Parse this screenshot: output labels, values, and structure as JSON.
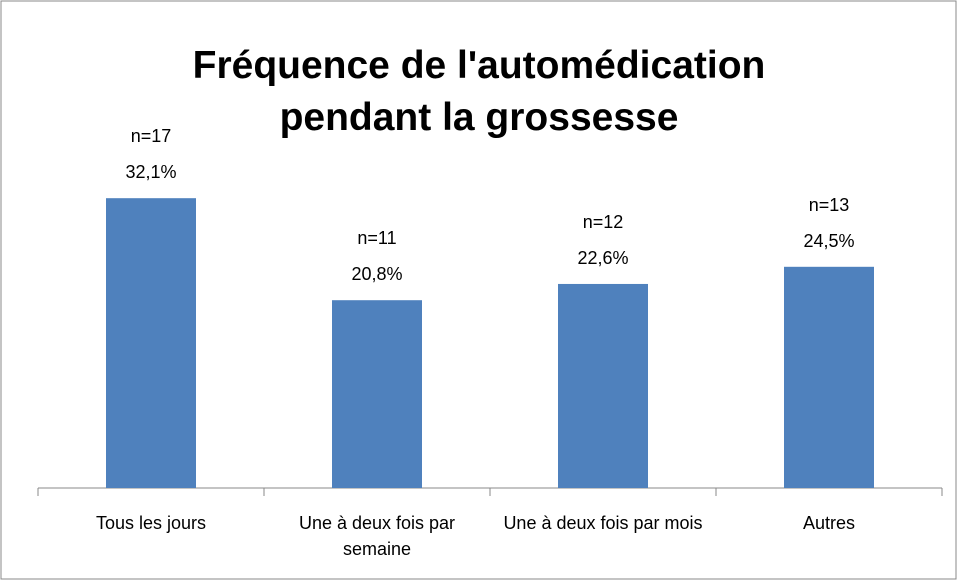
{
  "chart_data": {
    "type": "bar",
    "title": "Fréquence de l'automédication pendant la grossesse",
    "categories": [
      "Tous les jours",
      "Une à deux fois par semaine",
      "Une à deux fois par mois",
      "Autres"
    ],
    "values": [
      32.1,
      20.8,
      22.6,
      24.5
    ],
    "value_labels": [
      "32,1%",
      "20,8%",
      "22,6%",
      "24,5%"
    ],
    "count_labels": [
      "n=17",
      "n=11",
      "n=12",
      "n=13"
    ],
    "color": "#4f81bd",
    "ylim": [
      0,
      35
    ]
  }
}
